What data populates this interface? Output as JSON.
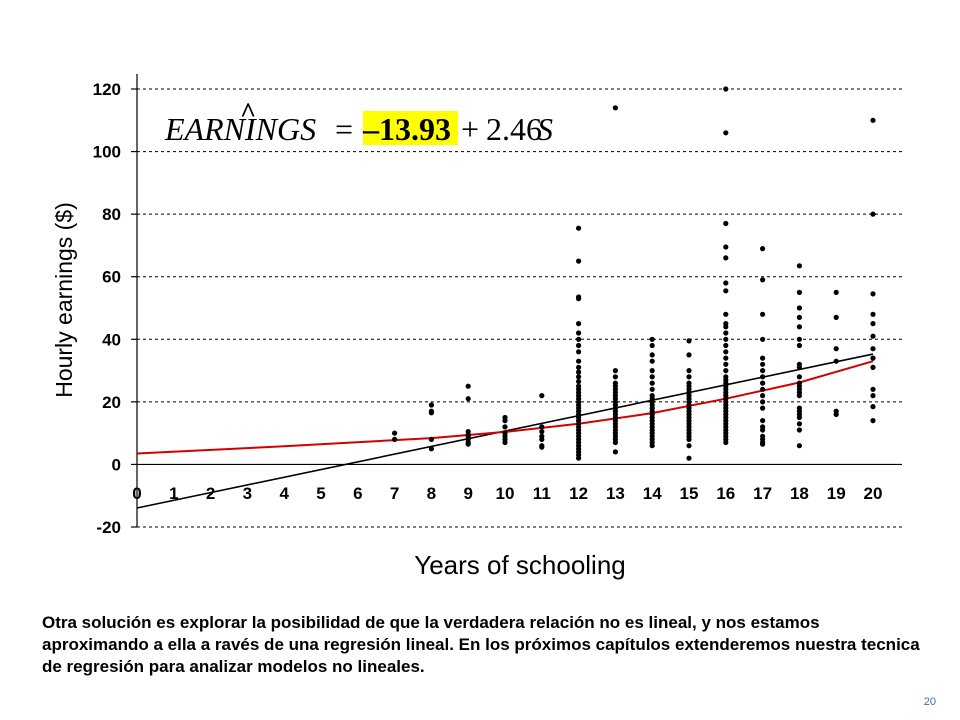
{
  "slide": {
    "caption": "Otra solución es explorar la posibilidad de que la verdadera relación no es lineal, y nos estamos aproximando a ella a ravés de una regresión lineal. En los próximos capítulos extenderemos nuestra tecnica de regresión para analizar modelos no lineales.",
    "page_number": "20"
  },
  "equation": {
    "lhs": "EARNINGS",
    "hat": "^",
    "equals": "=",
    "intercept": "–13.93",
    "plus": "+",
    "slope_term": "2.46",
    "variable": "S",
    "highlight_color": "#ffff00"
  },
  "chart_data": {
    "type": "scatter",
    "title": "",
    "xlabel": "Years of schooling",
    "ylabel": "Hourly earnings ($)",
    "xlim": [
      0,
      20
    ],
    "ylim": [
      -20,
      120
    ],
    "x_ticks": [
      "0",
      "1",
      "2",
      "3",
      "4",
      "5",
      "6",
      "7",
      "8",
      "9",
      "10",
      "11",
      "12",
      "13",
      "14",
      "15",
      "16",
      "17",
      "18",
      "19",
      "20"
    ],
    "y_ticks": [
      "-20",
      "0",
      "20",
      "40",
      "60",
      "80",
      "100",
      "120"
    ],
    "grid": "horizontal dashed",
    "regression_line": {
      "intercept": -13.93,
      "slope": 2.46,
      "color": "#000000"
    },
    "nonlinear_fit": {
      "points": [
        [
          0,
          3.5
        ],
        [
          4,
          5.8
        ],
        [
          8,
          8.4
        ],
        [
          10,
          10.4
        ],
        [
          12,
          13.0
        ],
        [
          14,
          16.4
        ],
        [
          16,
          21.0
        ],
        [
          18,
          26.2
        ],
        [
          20,
          33.0
        ]
      ],
      "color": "#d40000"
    },
    "points": [
      [
        7,
        10.0
      ],
      [
        7,
        8.0
      ],
      [
        8,
        19.0
      ],
      [
        8,
        17.0
      ],
      [
        8,
        16.5
      ],
      [
        8,
        8.0
      ],
      [
        8,
        5.0
      ],
      [
        9,
        25.0
      ],
      [
        9,
        21.0
      ],
      [
        9,
        10.5
      ],
      [
        9,
        9.5
      ],
      [
        9,
        9.0
      ],
      [
        9,
        8.0
      ],
      [
        9,
        7.0
      ],
      [
        9,
        6.5
      ],
      [
        10,
        15.0
      ],
      [
        10,
        14.0
      ],
      [
        10,
        12.0
      ],
      [
        10,
        10.0
      ],
      [
        10,
        9.0
      ],
      [
        10,
        8.0
      ],
      [
        10,
        7.0
      ],
      [
        11,
        22.0
      ],
      [
        11,
        12.0
      ],
      [
        11,
        10.5
      ],
      [
        11,
        9.0
      ],
      [
        11,
        8.0
      ],
      [
        11,
        6.0
      ],
      [
        11,
        5.5
      ],
      [
        12,
        75.5
      ],
      [
        12,
        65.0
      ],
      [
        12,
        53.5
      ],
      [
        12,
        53.0
      ],
      [
        12,
        45.0
      ],
      [
        12,
        42.0
      ],
      [
        12,
        40.0
      ],
      [
        12,
        38.0
      ],
      [
        12,
        36.0
      ],
      [
        12,
        33.0
      ],
      [
        12,
        31.0
      ],
      [
        12,
        29.5
      ],
      [
        12,
        28.0
      ],
      [
        12,
        26.5
      ],
      [
        12,
        25.0
      ],
      [
        12,
        24.0
      ],
      [
        12,
        23.0
      ],
      [
        12,
        22.0
      ],
      [
        12,
        21.0
      ],
      [
        12,
        20.0
      ],
      [
        12,
        19.0
      ],
      [
        12,
        18.0
      ],
      [
        12,
        17.0
      ],
      [
        12,
        16.0
      ],
      [
        12,
        15.0
      ],
      [
        12,
        14.0
      ],
      [
        12,
        13.0
      ],
      [
        12,
        12.0
      ],
      [
        12,
        11.0
      ],
      [
        12,
        10.0
      ],
      [
        12,
        9.0
      ],
      [
        12,
        8.0
      ],
      [
        12,
        7.0
      ],
      [
        12,
        6.0
      ],
      [
        12,
        5.0
      ],
      [
        12,
        4.0
      ],
      [
        12,
        3.0
      ],
      [
        12,
        2.0
      ],
      [
        13,
        114.0
      ],
      [
        13,
        30.0
      ],
      [
        13,
        28.0
      ],
      [
        13,
        26.0
      ],
      [
        13,
        25.0
      ],
      [
        13,
        24.0
      ],
      [
        13,
        23.0
      ],
      [
        13,
        22.0
      ],
      [
        13,
        21.0
      ],
      [
        13,
        20.0
      ],
      [
        13,
        19.0
      ],
      [
        13,
        18.0
      ],
      [
        13,
        17.0
      ],
      [
        13,
        16.0
      ],
      [
        13,
        15.0
      ],
      [
        13,
        14.0
      ],
      [
        13,
        13.0
      ],
      [
        13,
        12.0
      ],
      [
        13,
        11.0
      ],
      [
        13,
        10.0
      ],
      [
        13,
        9.0
      ],
      [
        13,
        8.0
      ],
      [
        13,
        7.0
      ],
      [
        13,
        4.0
      ],
      [
        14,
        40.0
      ],
      [
        14,
        38.0
      ],
      [
        14,
        35.0
      ],
      [
        14,
        33.0
      ],
      [
        14,
        30.0
      ],
      [
        14,
        28.0
      ],
      [
        14,
        26.0
      ],
      [
        14,
        24.0
      ],
      [
        14,
        22.0
      ],
      [
        14,
        21.0
      ],
      [
        14,
        20.0
      ],
      [
        14,
        19.0
      ],
      [
        14,
        18.0
      ],
      [
        14,
        17.0
      ],
      [
        14,
        16.0
      ],
      [
        14,
        15.0
      ],
      [
        14,
        14.0
      ],
      [
        14,
        13.0
      ],
      [
        14,
        12.0
      ],
      [
        14,
        11.0
      ],
      [
        14,
        10.0
      ],
      [
        14,
        9.0
      ],
      [
        14,
        8.0
      ],
      [
        14,
        7.0
      ],
      [
        14,
        6.0
      ],
      [
        15,
        39.5
      ],
      [
        15,
        35.0
      ],
      [
        15,
        30.0
      ],
      [
        15,
        28.0
      ],
      [
        15,
        26.0
      ],
      [
        15,
        25.0
      ],
      [
        15,
        24.0
      ],
      [
        15,
        23.0
      ],
      [
        15,
        22.0
      ],
      [
        15,
        21.0
      ],
      [
        15,
        20.0
      ],
      [
        15,
        19.0
      ],
      [
        15,
        18.0
      ],
      [
        15,
        17.0
      ],
      [
        15,
        16.0
      ],
      [
        15,
        15.0
      ],
      [
        15,
        14.0
      ],
      [
        15,
        13.0
      ],
      [
        15,
        12.0
      ],
      [
        15,
        11.0
      ],
      [
        15,
        10.0
      ],
      [
        15,
        9.0
      ],
      [
        15,
        8.0
      ],
      [
        15,
        6.0
      ],
      [
        15,
        2.0
      ],
      [
        16,
        120.0
      ],
      [
        16,
        106.0
      ],
      [
        16,
        77.0
      ],
      [
        16,
        69.5
      ],
      [
        16,
        66.0
      ],
      [
        16,
        58.0
      ],
      [
        16,
        55.5
      ],
      [
        16,
        48.0
      ],
      [
        16,
        45.0
      ],
      [
        16,
        44.0
      ],
      [
        16,
        42.0
      ],
      [
        16,
        40.0
      ],
      [
        16,
        38.0
      ],
      [
        16,
        36.0
      ],
      [
        16,
        34.0
      ],
      [
        16,
        32.0
      ],
      [
        16,
        30.0
      ],
      [
        16,
        28.0
      ],
      [
        16,
        27.0
      ],
      [
        16,
        26.0
      ],
      [
        16,
        25.0
      ],
      [
        16,
        24.0
      ],
      [
        16,
        23.0
      ],
      [
        16,
        22.0
      ],
      [
        16,
        21.0
      ],
      [
        16,
        20.0
      ],
      [
        16,
        19.0
      ],
      [
        16,
        18.0
      ],
      [
        16,
        17.0
      ],
      [
        16,
        16.0
      ],
      [
        16,
        15.0
      ],
      [
        16,
        14.0
      ],
      [
        16,
        13.0
      ],
      [
        16,
        12.0
      ],
      [
        16,
        11.0
      ],
      [
        16,
        10.0
      ],
      [
        16,
        9.0
      ],
      [
        16,
        8.0
      ],
      [
        16,
        7.0
      ],
      [
        17,
        69.0
      ],
      [
        17,
        59.0
      ],
      [
        17,
        48.0
      ],
      [
        17,
        40.0
      ],
      [
        17,
        34.0
      ],
      [
        17,
        32.0
      ],
      [
        17,
        30.0
      ],
      [
        17,
        28.0
      ],
      [
        17,
        26.0
      ],
      [
        17,
        24.0
      ],
      [
        17,
        22.0
      ],
      [
        17,
        20.0
      ],
      [
        17,
        18.0
      ],
      [
        17,
        14.0
      ],
      [
        17,
        12.0
      ],
      [
        17,
        11.0
      ],
      [
        17,
        9.0
      ],
      [
        17,
        8.0
      ],
      [
        17,
        7.0
      ],
      [
        17,
        6.5
      ],
      [
        18,
        63.5
      ],
      [
        18,
        55.0
      ],
      [
        18,
        50.0
      ],
      [
        18,
        47.0
      ],
      [
        18,
        44.0
      ],
      [
        18,
        40.0
      ],
      [
        18,
        38.0
      ],
      [
        18,
        32.0
      ],
      [
        18,
        31.0
      ],
      [
        18,
        28.0
      ],
      [
        18,
        26.0
      ],
      [
        18,
        25.0
      ],
      [
        18,
        24.0
      ],
      [
        18,
        23.0
      ],
      [
        18,
        22.0
      ],
      [
        18,
        18.0
      ],
      [
        18,
        17.0
      ],
      [
        18,
        16.0
      ],
      [
        18,
        15.0
      ],
      [
        18,
        13.0
      ],
      [
        18,
        11.0
      ],
      [
        18,
        6.0
      ],
      [
        19,
        55.0
      ],
      [
        19,
        47.0
      ],
      [
        19,
        37.0
      ],
      [
        19,
        33.0
      ],
      [
        19,
        17.0
      ],
      [
        19,
        16.0
      ],
      [
        20,
        110.0
      ],
      [
        20,
        80.0
      ],
      [
        20,
        54.5
      ],
      [
        20,
        48.0
      ],
      [
        20,
        45.0
      ],
      [
        20,
        41.0
      ],
      [
        20,
        37.0
      ],
      [
        20,
        34.0
      ],
      [
        20,
        31.0
      ],
      [
        20,
        24.0
      ],
      [
        20,
        22.0
      ],
      [
        20,
        18.5
      ],
      [
        20,
        14.0
      ]
    ]
  }
}
